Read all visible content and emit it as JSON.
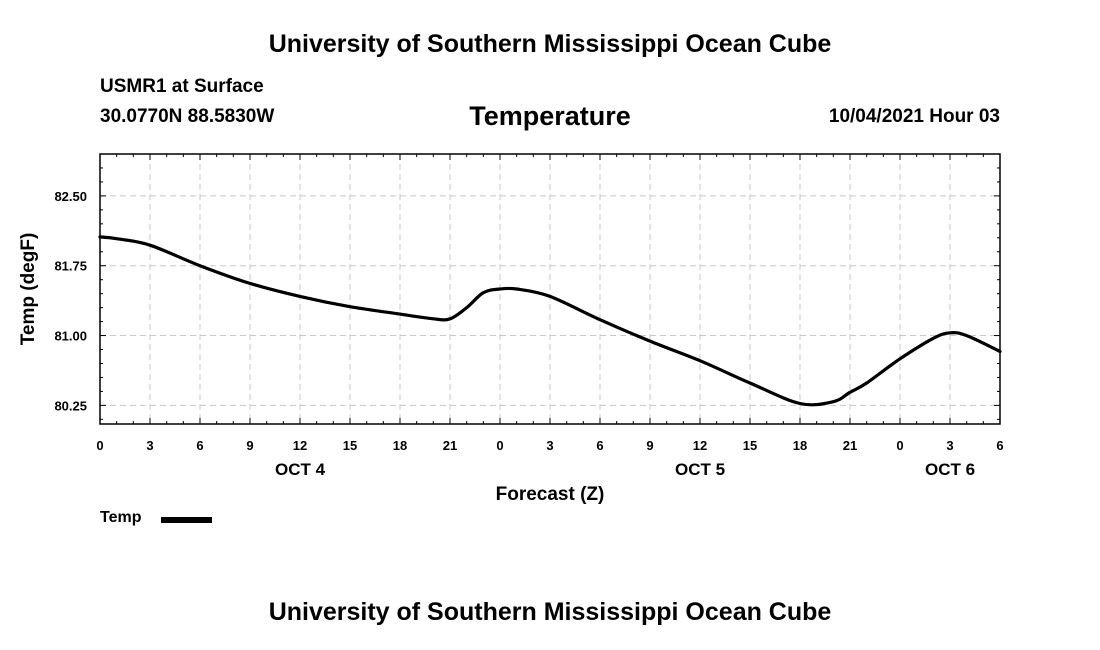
{
  "header": {
    "title": "University of Southern Mississippi Ocean Cube",
    "station": "USMR1 at Surface",
    "coordinates": "30.0770N  88.5830W",
    "variable": "Temperature",
    "datetime": "10/04/2021 Hour 03"
  },
  "footer": {
    "title": "University of Southern Mississippi Ocean Cube"
  },
  "legend": {
    "label": "Temp",
    "color": "#000000"
  },
  "chart_data": {
    "type": "line",
    "title": "Temperature",
    "xlabel": "Forecast (Z)",
    "ylabel": "Temp (degF)",
    "xlim": [
      0,
      54
    ],
    "ylim": [
      80.05,
      82.95
    ],
    "x_ticks": [
      0,
      3,
      6,
      9,
      12,
      15,
      18,
      21,
      24,
      27,
      30,
      33,
      36,
      39,
      42,
      45,
      48,
      51,
      54
    ],
    "x_tick_labels": [
      "0",
      "3",
      "6",
      "9",
      "12",
      "15",
      "18",
      "21",
      "0",
      "3",
      "6",
      "9",
      "12",
      "15",
      "18",
      "21",
      "0",
      "3",
      "6"
    ],
    "y_ticks": [
      80.25,
      81.0,
      81.75,
      82.5
    ],
    "y_tick_labels": [
      "80.25",
      "81.00",
      "81.75",
      "82.50"
    ],
    "y_minor_ticks": [
      80.1,
      80.4,
      80.55,
      80.7,
      80.85,
      81.15,
      81.3,
      81.45,
      81.6,
      81.9,
      82.05,
      82.2,
      82.35,
      82.65,
      82.8
    ],
    "day_labels": [
      {
        "x": 12,
        "label": "OCT 4"
      },
      {
        "x": 36,
        "label": "OCT 5"
      },
      {
        "x": 51,
        "label": "OCT 6"
      }
    ],
    "grid": true,
    "legend_position": "bottom-left",
    "series": [
      {
        "name": "Temp",
        "color": "#000000",
        "x": [
          0,
          1,
          3,
          6,
          9,
          12,
          15,
          18,
          20,
          21,
          22,
          23,
          24,
          25,
          27,
          30,
          33,
          36,
          39,
          42,
          44,
          45,
          46,
          48,
          50,
          51,
          52,
          54
        ],
        "y": [
          82.06,
          82.04,
          81.97,
          81.75,
          81.56,
          81.42,
          81.31,
          81.23,
          81.18,
          81.18,
          81.3,
          81.46,
          81.5,
          81.5,
          81.42,
          81.17,
          80.94,
          80.73,
          80.49,
          80.27,
          80.29,
          80.39,
          80.49,
          80.75,
          80.97,
          81.03,
          81.0,
          80.83
        ]
      }
    ]
  }
}
